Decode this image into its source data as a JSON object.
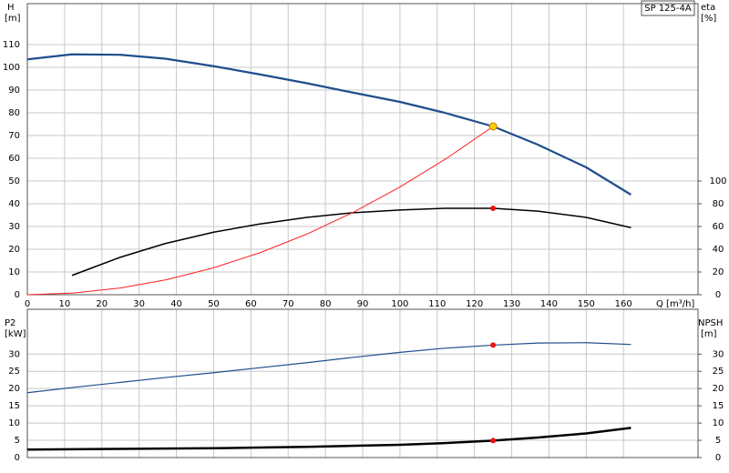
{
  "chart_data": [
    {
      "type": "line",
      "title": "SP 125-4A",
      "ylabel": "H",
      "yunit": "[m]",
      "y2label": "eta",
      "y2unit": "[%]",
      "xlabel": "Q [m³/h]",
      "xlim": [
        0,
        180
      ],
      "xticks": [
        0,
        10,
        20,
        30,
        40,
        50,
        60,
        70,
        80,
        90,
        100,
        110,
        120,
        130,
        140,
        150,
        160
      ],
      "ylim": [
        0,
        128
      ],
      "yticks": [
        0,
        10,
        20,
        30,
        40,
        50,
        60,
        70,
        80,
        90,
        100,
        110
      ],
      "y2lim": [
        0,
        256
      ],
      "y2ticks": [
        0,
        20,
        40,
        60,
        80,
        100
      ],
      "xtick_labels": true,
      "grid": true,
      "series": [
        {
          "color": "#1f4e8c",
          "width": 2.2,
          "x": [
            0,
            12,
            25,
            37,
            50,
            62,
            75,
            87,
            100,
            112,
            125,
            137,
            150,
            162
          ],
          "values": [
            103.5,
            105.7,
            105.5,
            103.8,
            100.5,
            97,
            93,
            89,
            84.8,
            80,
            74,
            66,
            56,
            44
          ]
        },
        {
          "color": "#000000",
          "width": 1.5,
          "axis": "y2",
          "x": [
            12,
            25,
            37,
            50,
            62,
            75,
            87,
            100,
            112,
            125,
            137,
            150,
            162
          ],
          "values": [
            17,
            33,
            45,
            55,
            62,
            68,
            72,
            74.5,
            76,
            76,
            73.5,
            68,
            59
          ]
        },
        {
          "color": "#ff2020",
          "width": 1,
          "x": [
            0,
            12.5,
            25,
            37.5,
            50,
            62.5,
            75,
            87.5,
            100,
            112.5,
            125
          ],
          "values": [
            0,
            0.74,
            2.96,
            6.66,
            11.84,
            18.5,
            26.64,
            36.26,
            47.36,
            59.94,
            74
          ]
        }
      ],
      "points": [
        {
          "x": 125,
          "y": 74,
          "color": "#ffcc00"
        },
        {
          "x": 125,
          "y": 76,
          "color": "#ee1111",
          "axis": "y2"
        }
      ]
    },
    {
      "type": "line",
      "ylabel": "P2",
      "yunit": "[kW]",
      "y2label": "NPSH",
      "y2unit": "[m]",
      "xlim": [
        0,
        180
      ],
      "xticks": [
        0,
        10,
        20,
        30,
        40,
        50,
        60,
        70,
        80,
        90,
        100,
        110,
        120,
        130,
        140,
        150,
        160
      ],
      "ylim": [
        0,
        43
      ],
      "yticks": [
        0,
        5,
        10,
        15,
        20,
        25,
        30
      ],
      "y2lim": [
        0,
        43
      ],
      "y2ticks": [
        0,
        5,
        10,
        15,
        20,
        25,
        30
      ],
      "xtick_labels": false,
      "grid": true,
      "series": [
        {
          "color": "#1f4e8c",
          "width": 1.2,
          "x": [
            0,
            12,
            25,
            37,
            50,
            62,
            75,
            87,
            100,
            112,
            125,
            137,
            150,
            162
          ],
          "values": [
            18.8,
            20.3,
            21.8,
            23.2,
            24.6,
            26,
            27.5,
            29,
            30.5,
            31.7,
            32.6,
            33.2,
            33.3,
            32.8
          ]
        },
        {
          "color": "#000000",
          "width": 2.5,
          "axis": "y2",
          "x": [
            0,
            12,
            25,
            37,
            50,
            62,
            75,
            87,
            100,
            112,
            125,
            137,
            150,
            162
          ],
          "values": [
            2.3,
            2.4,
            2.5,
            2.6,
            2.7,
            2.9,
            3.1,
            3.4,
            3.7,
            4.2,
            4.9,
            5.8,
            7,
            8.6
          ]
        }
      ],
      "points": [
        {
          "x": 125,
          "y": 32.6,
          "color": "#ee1111"
        },
        {
          "x": 125,
          "y": 4.9,
          "color": "#ee1111",
          "axis": "y2"
        }
      ]
    }
  ]
}
